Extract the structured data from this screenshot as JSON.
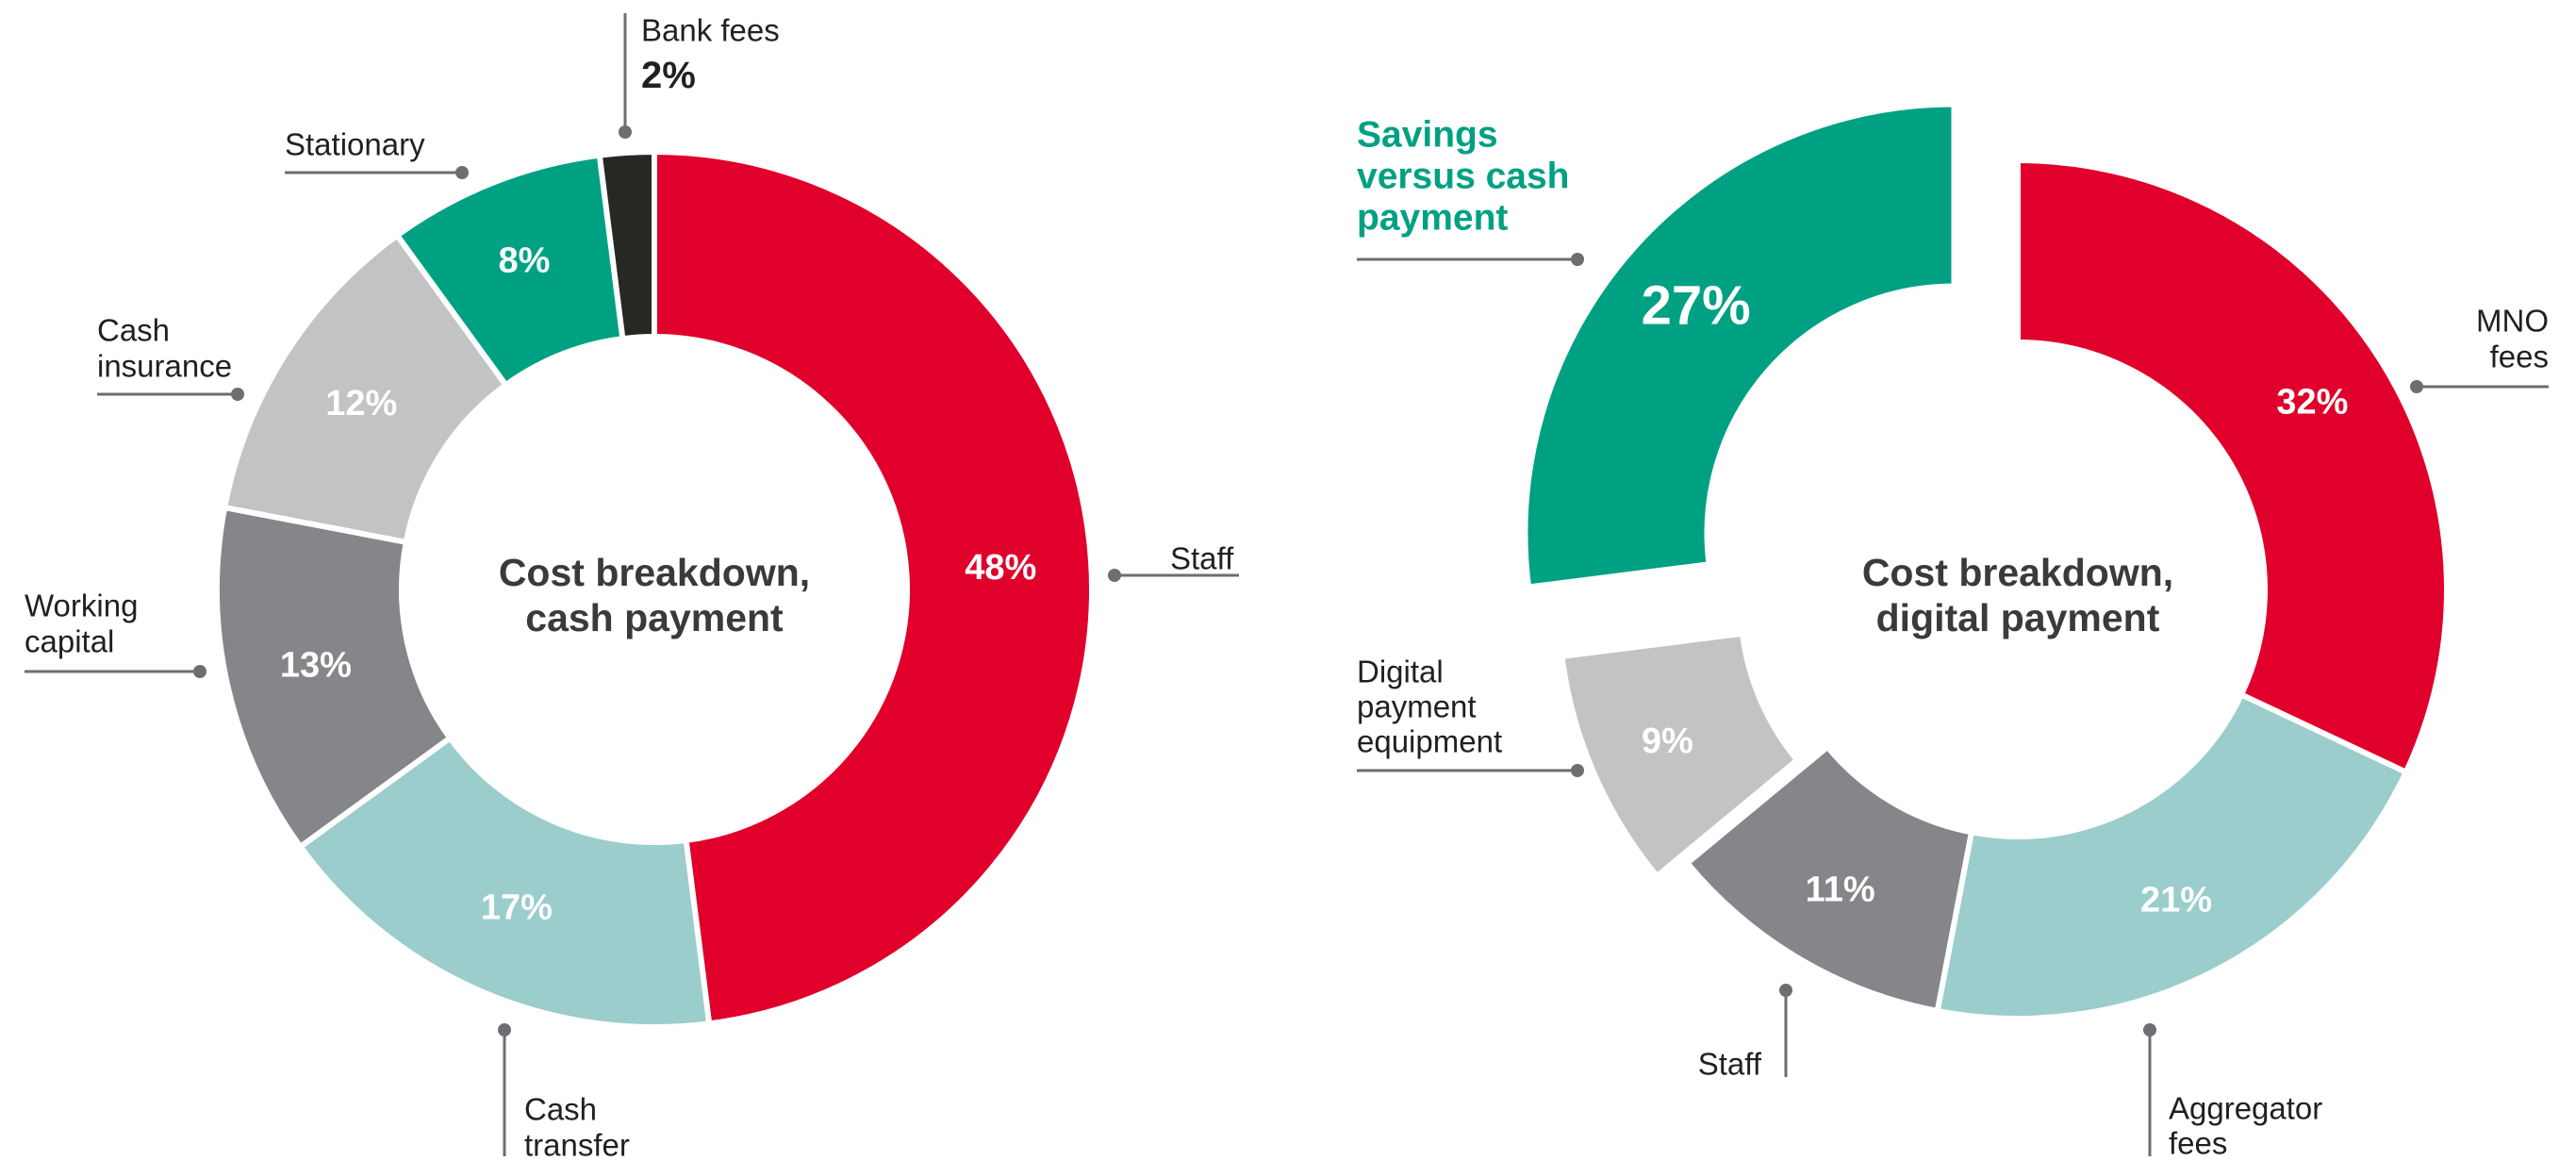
{
  "chart_data": [
    {
      "type": "pie",
      "center_title": [
        "Cost breakdown,",
        "cash payment"
      ],
      "slices": [
        {
          "label": [
            "Staff"
          ],
          "value": 48,
          "value_label": "48%",
          "color": "#e0002b",
          "label_color": "#ffffff"
        },
        {
          "label": [
            "Cash",
            "transfer"
          ],
          "value": 17,
          "value_label": "17%",
          "color": "#9acdcc",
          "label_color": "#ffffff"
        },
        {
          "label": [
            "Working",
            "capital"
          ],
          "value": 13,
          "value_label": "13%",
          "color": "#858689",
          "label_color": "#ffffff"
        },
        {
          "label": [
            "Cash",
            "insurance"
          ],
          "value": 12,
          "value_label": "12%",
          "color": "#c2c3c5",
          "label_color": "#ffffff"
        },
        {
          "label": [
            "Stationary"
          ],
          "value": 8,
          "value_label": "8%",
          "color": "#00a183",
          "label_color": "#ffffff"
        },
        {
          "label": [
            "Bank fees"
          ],
          "value": 2,
          "value_label": "2%",
          "color": "#262824",
          "label_color": "#231f20"
        }
      ]
    },
    {
      "type": "pie",
      "center_title": [
        "Cost breakdown,",
        "digital payment"
      ],
      "slices": [
        {
          "label": [
            "MNO",
            "fees"
          ],
          "value": 32,
          "value_label": "32%",
          "color": "#e0002b",
          "label_color": "#ffffff"
        },
        {
          "label": [
            "Aggregator",
            "fees"
          ],
          "value": 21,
          "value_label": "21%",
          "color": "#9acdcc",
          "label_color": "#ffffff"
        },
        {
          "label": [
            "Staff"
          ],
          "value": 11,
          "value_label": "11%",
          "color": "#858689",
          "label_color": "#ffffff"
        },
        {
          "label": [
            "Digital",
            "payment",
            "equipment"
          ],
          "value": 9,
          "value_label": "9%",
          "color": "#c2c3c5",
          "label_color": "#ffffff"
        },
        {
          "label": [
            "Savings",
            "versus cash",
            "payment"
          ],
          "value": 27,
          "value_label": "27%",
          "color": "#00a183",
          "label_color": "#ffffff",
          "exploded": true
        }
      ]
    }
  ]
}
